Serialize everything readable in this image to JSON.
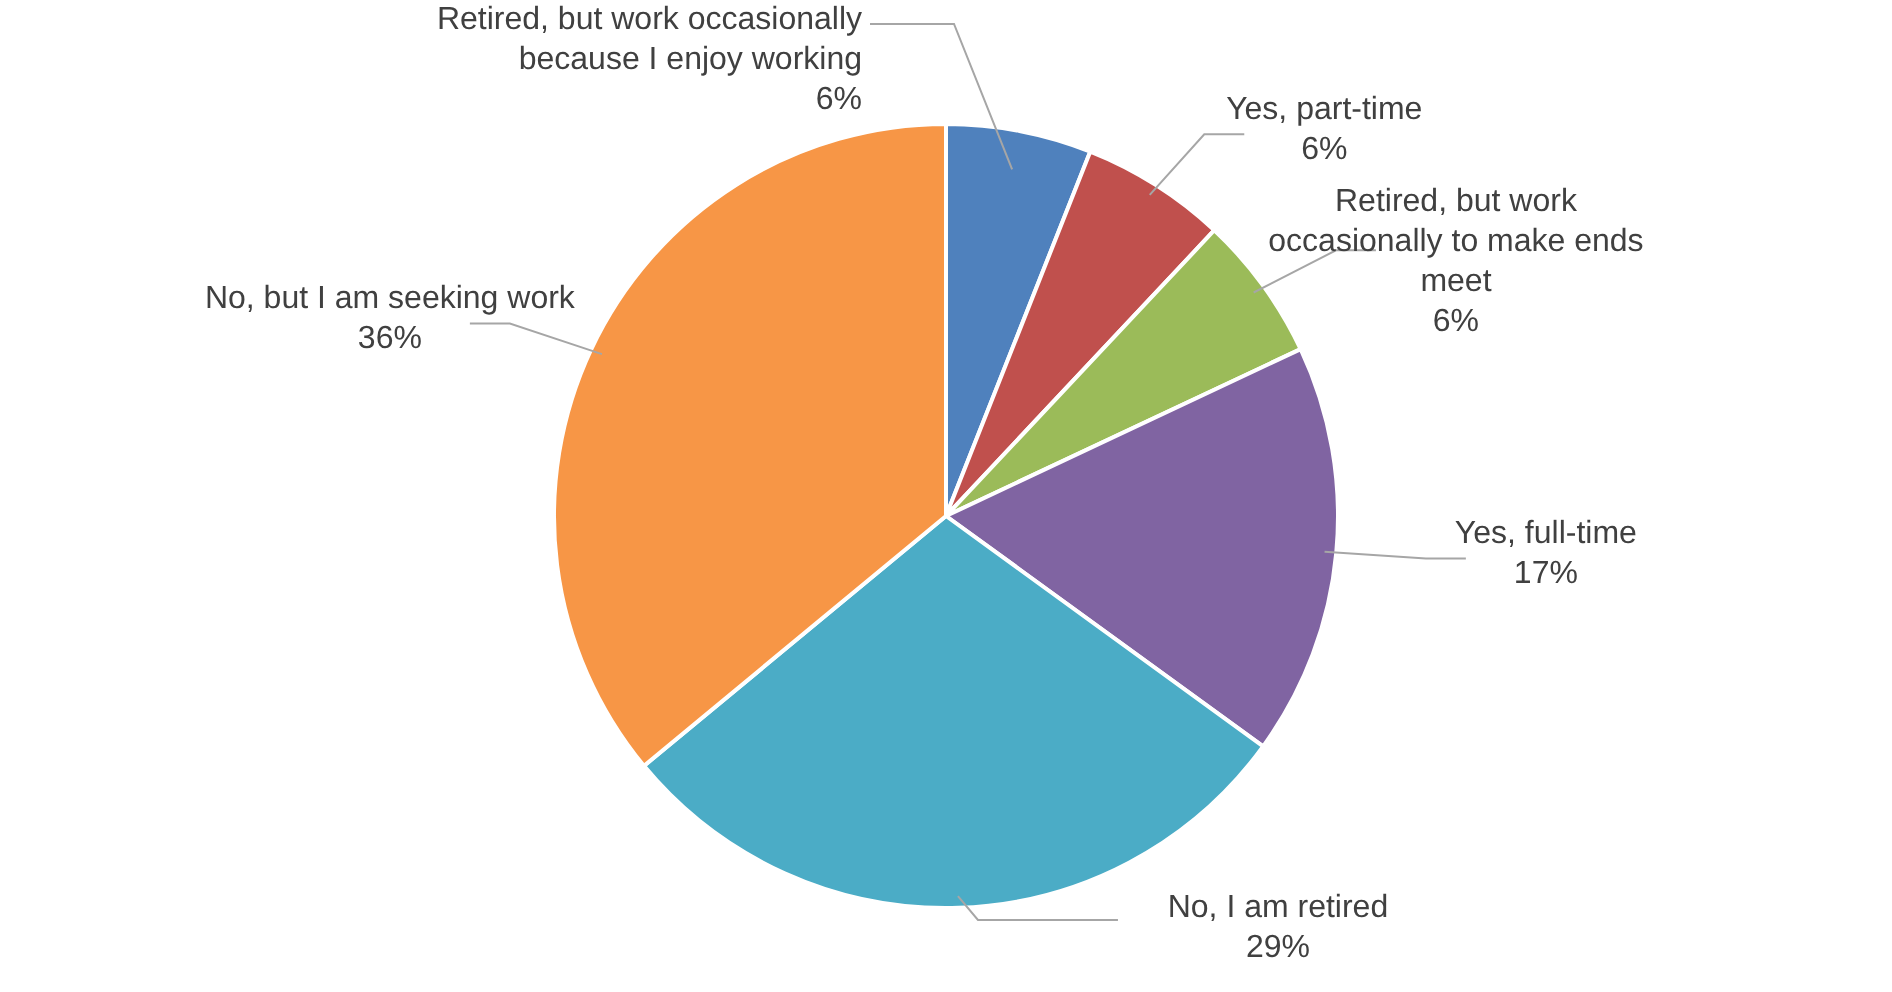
{
  "chart_data": {
    "type": "pie",
    "categories": [
      "Retired, but work occasionally because I enjoy working",
      "Yes, part-time",
      "Retired, but work occasionally to make ends meet",
      "Yes, full-time",
      "No, I am retired",
      "No, but I am seeking work"
    ],
    "values": [
      6,
      6,
      6,
      17,
      29,
      36
    ],
    "colors": [
      "#4f81bd",
      "#c0504d",
      "#9bbb59",
      "#8064a2",
      "#4bacc6",
      "#f79646"
    ],
    "value_labels": [
      "6%",
      "6%",
      "6%",
      "17%",
      "29%",
      "36%"
    ],
    "legend": false
  }
}
